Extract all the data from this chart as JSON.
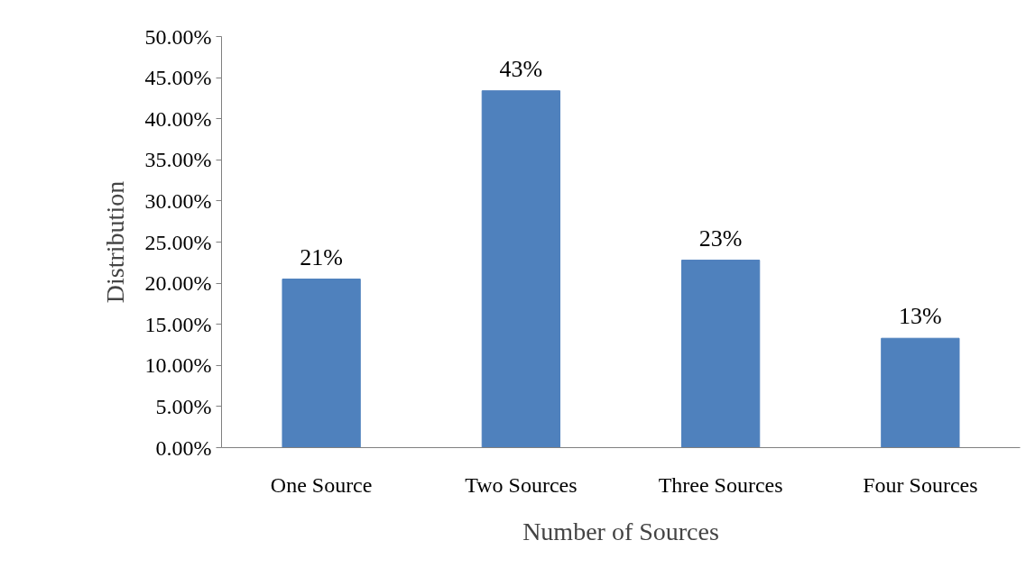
{
  "chart_data": {
    "type": "bar",
    "xlabel": "Number of Sources",
    "ylabel": "Distribution",
    "categories": [
      "One Source",
      "Two Sources",
      "Three Sources",
      "Four Sources"
    ],
    "values": [
      20.5,
      43.4,
      22.8,
      13.3
    ],
    "value_labels": [
      "21%",
      "43%",
      "23%",
      "13%"
    ],
    "color": "#4f81bd",
    "ylim": [
      0,
      50
    ],
    "yticks": [
      {
        "value": 0,
        "label": "0.00%"
      },
      {
        "value": 5,
        "label": "5.00%"
      },
      {
        "value": 10,
        "label": "10.00%"
      },
      {
        "value": 15,
        "label": "15.00%"
      },
      {
        "value": 20,
        "label": "20.00%"
      },
      {
        "value": 25,
        "label": "25.00%"
      },
      {
        "value": 30,
        "label": "30.00%"
      },
      {
        "value": 35,
        "label": "35.00%"
      },
      {
        "value": 40,
        "label": "40.00%"
      },
      {
        "value": 45,
        "label": "45.00%"
      },
      {
        "value": 50,
        "label": "50.00%"
      }
    ],
    "grid": false
  }
}
